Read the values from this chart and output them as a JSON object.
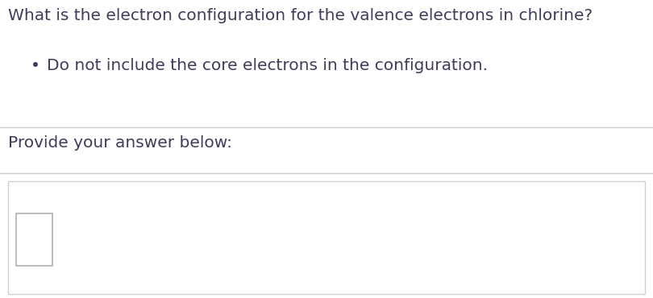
{
  "title": "What is the electron configuration for the valence electrons in chlorine?",
  "bullet_text": "Do not include the core electrons in the configuration.",
  "answer_prompt": "Provide your answer below:",
  "bg_color": "#ffffff",
  "text_color": "#3d3d5c",
  "line_color": "#cccccc",
  "box_border_color": "#b0b0b0",
  "answer_area_border": "#d0d0d0",
  "title_fontsize": 14.5,
  "bullet_fontsize": 14.5,
  "answer_fontsize": 14.5,
  "font_family": "DejaVu Sans"
}
